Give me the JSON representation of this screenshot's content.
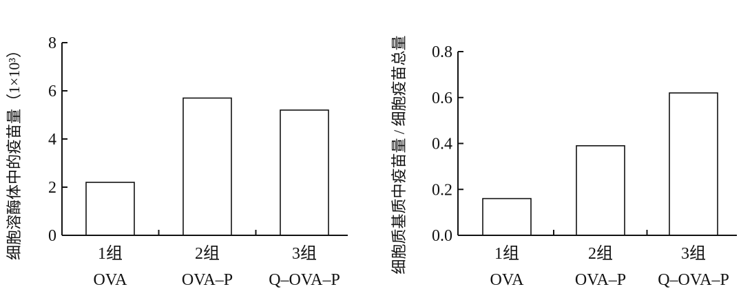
{
  "chart_data": [
    {
      "type": "bar",
      "categories": [
        {
          "group": "1组",
          "name": "OVA"
        },
        {
          "group": "2组",
          "name": "OVA–P"
        },
        {
          "group": "3组",
          "name": "Q–OVA–P"
        }
      ],
      "values": [
        2.2,
        5.7,
        5.2
      ],
      "title": "",
      "xlabel": "",
      "ylabel": "细胞溶酶体中的疫苗量（1×10³）",
      "ylim": [
        0,
        8
      ],
      "yticks": [
        0,
        2,
        4,
        6,
        8
      ],
      "ytick_labels": [
        "0",
        "2",
        "4",
        "6",
        "8"
      ],
      "grid": false
    },
    {
      "type": "bar",
      "categories": [
        {
          "group": "1组",
          "name": "OVA"
        },
        {
          "group": "2组",
          "name": "OVA–P"
        },
        {
          "group": "3组",
          "name": "Q–OVA–P"
        }
      ],
      "values": [
        0.16,
        0.39,
        0.62
      ],
      "title": "",
      "xlabel": "",
      "ylabel": "细胞质基质中疫苗量 / 细胞疫苗总量",
      "ylim": [
        0,
        0.8
      ],
      "yticks": [
        0,
        0.2,
        0.4,
        0.6,
        0.8
      ],
      "ytick_labels": [
        "0.0",
        "0.2",
        "0.4",
        "0.6",
        "0.8"
      ],
      "grid": false
    }
  ],
  "colors": {
    "bar_fill": "#ffffff",
    "bar_stroke": "#111111",
    "axis": "#111111"
  }
}
